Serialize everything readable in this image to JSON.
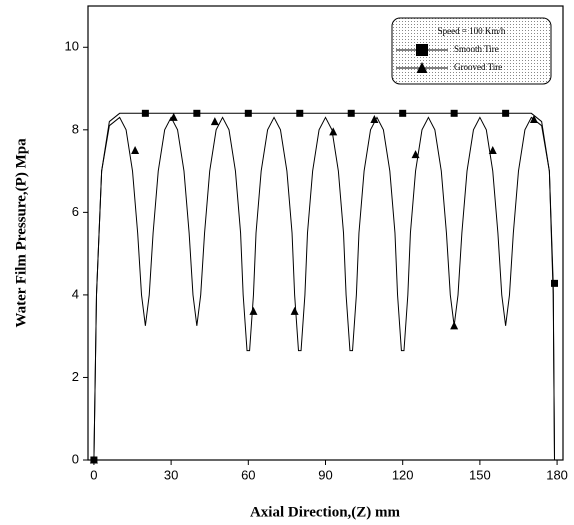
{
  "chart_data": {
    "type": "line",
    "xlabel": "Axial Direction,(Z) mm",
    "ylabel": "Water Film Pressure,(P) Mpa",
    "legend_title": "Speed = 100 Km/h",
    "legend": "upper right",
    "xlim": [
      -2.3,
      182.3
    ],
    "ylim": [
      0,
      11
    ],
    "xticks": [
      0,
      30,
      60,
      90,
      120,
      150,
      180
    ],
    "yticks": [
      0,
      2,
      4,
      6,
      8,
      10
    ],
    "series": [
      {
        "name": "Smooth Tire",
        "color": "#000000",
        "marker": "square",
        "x": [
          0,
          1,
          3,
          6,
          10,
          170,
          174,
          177,
          178.5,
          179
        ],
        "values": [
          0,
          4,
          7,
          8.2,
          8.4,
          8.4,
          8.2,
          7,
          4.28,
          0
        ],
        "markers": {
          "x": [
            0,
            20,
            40,
            60,
            80,
            100,
            120,
            140,
            160,
            179
          ],
          "values": [
            0,
            8.4,
            8.4,
            8.4,
            8.4,
            8.4,
            8.4,
            8.4,
            8.4,
            4.28
          ]
        }
      },
      {
        "name": "Grooved Tire",
        "color": "#000000",
        "marker": "triangle",
        "x": [
          0,
          1,
          3,
          6,
          10,
          12.5,
          15,
          17,
          18.5,
          20,
          21.5,
          23,
          25,
          27.5,
          30,
          32.5,
          35,
          37,
          38.5,
          40,
          41.5,
          43,
          45,
          47.5,
          50,
          52.5,
          55,
          57,
          58,
          59.5,
          60.5,
          62,
          63,
          65,
          67.5,
          70,
          72.5,
          75,
          77,
          78,
          79.5,
          80.5,
          82,
          83,
          85,
          87.5,
          90,
          92.5,
          95,
          97,
          98,
          99.5,
          100.5,
          102,
          103,
          105,
          107.5,
          110,
          112.5,
          115,
          117,
          118,
          119.5,
          120.5,
          122,
          123,
          125,
          127.5,
          130,
          132.5,
          135,
          137,
          138.5,
          140,
          141.5,
          143,
          145,
          147.5,
          150,
          152.5,
          155,
          157,
          158.5,
          160,
          161.5,
          163,
          165,
          167.5,
          170,
          174,
          177,
          178.5,
          179
        ],
        "values": [
          0,
          4,
          7,
          8.1,
          8.3,
          8.0,
          7.0,
          5.5,
          4.0,
          3.25,
          4.0,
          5.5,
          7.0,
          8.0,
          8.3,
          8.0,
          7.0,
          5.5,
          4.0,
          3.25,
          4.0,
          5.5,
          7.0,
          8.0,
          8.3,
          8.0,
          7.0,
          5.5,
          4.0,
          2.65,
          2.65,
          4.0,
          5.5,
          7.0,
          8.0,
          8.3,
          8.0,
          7.0,
          5.5,
          4.0,
          2.65,
          2.65,
          4.0,
          5.5,
          7.0,
          8.0,
          8.3,
          8.0,
          7.0,
          5.5,
          4.0,
          2.65,
          2.65,
          4.0,
          5.5,
          7.0,
          8.0,
          8.3,
          8.0,
          7.0,
          5.5,
          4.0,
          2.65,
          2.65,
          4.0,
          5.5,
          7.0,
          8.0,
          8.3,
          8.0,
          7.0,
          5.5,
          4.0,
          3.25,
          4.0,
          5.5,
          7.0,
          8.0,
          8.3,
          8.0,
          7.0,
          5.5,
          4.0,
          3.25,
          4.0,
          5.5,
          7.0,
          8.0,
          8.3,
          8.1,
          7,
          4,
          0
        ],
        "markers": {
          "x": [
            0,
            16,
            31,
            47,
            62,
            78,
            93,
            109,
            125,
            140,
            155,
            171
          ],
          "values": [
            0,
            7.5,
            8.3,
            8.2,
            3.6,
            3.6,
            7.95,
            8.25,
            7.4,
            3.25,
            7.5,
            8.25
          ]
        }
      }
    ]
  }
}
